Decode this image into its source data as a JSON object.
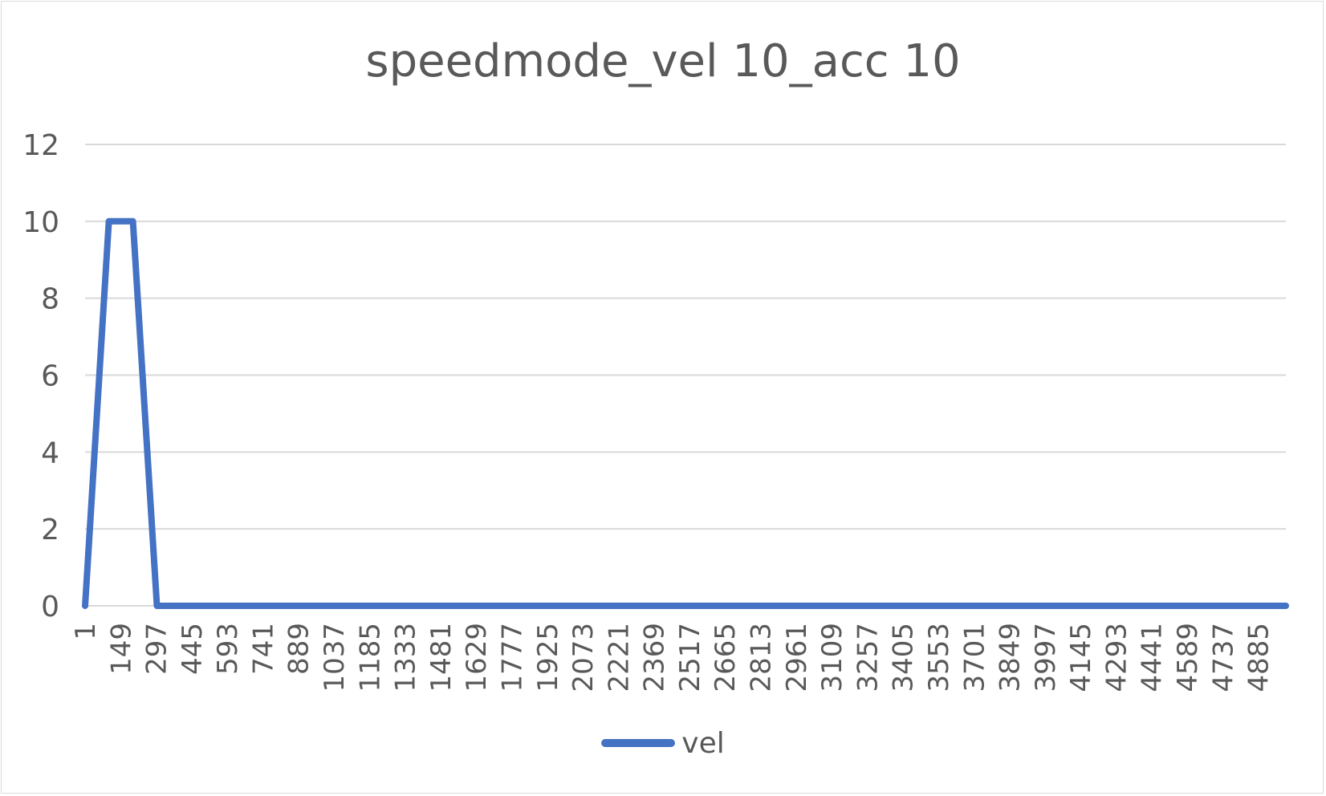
{
  "chart_data": {
    "type": "line",
    "title": "speedmode_vel 10_acc 10",
    "xlabel": "",
    "ylabel": "",
    "x_tick_labels": [
      "1",
      "149",
      "297",
      "445",
      "593",
      "741",
      "889",
      "1037",
      "1185",
      "1333",
      "1481",
      "1629",
      "1777",
      "1925",
      "2073",
      "2221",
      "2369",
      "2517",
      "2665",
      "2813",
      "2961",
      "3109",
      "3257",
      "3405",
      "3553",
      "3701",
      "3849",
      "3997",
      "4145",
      "4293",
      "4441",
      "4589",
      "4737",
      "4885"
    ],
    "y_tick_labels": [
      "0",
      "2",
      "4",
      "6",
      "8",
      "10",
      "12"
    ],
    "xlim": [
      1,
      5000
    ],
    "ylim": [
      0,
      12
    ],
    "grid": true,
    "legend_position": "bottom",
    "series": [
      {
        "name": "vel",
        "color": "#4472c4",
        "points": [
          {
            "x": 1,
            "y": 0
          },
          {
            "x": 100,
            "y": 10
          },
          {
            "x": 200,
            "y": 10
          },
          {
            "x": 300,
            "y": 0
          },
          {
            "x": 5000,
            "y": 0
          }
        ]
      }
    ]
  }
}
